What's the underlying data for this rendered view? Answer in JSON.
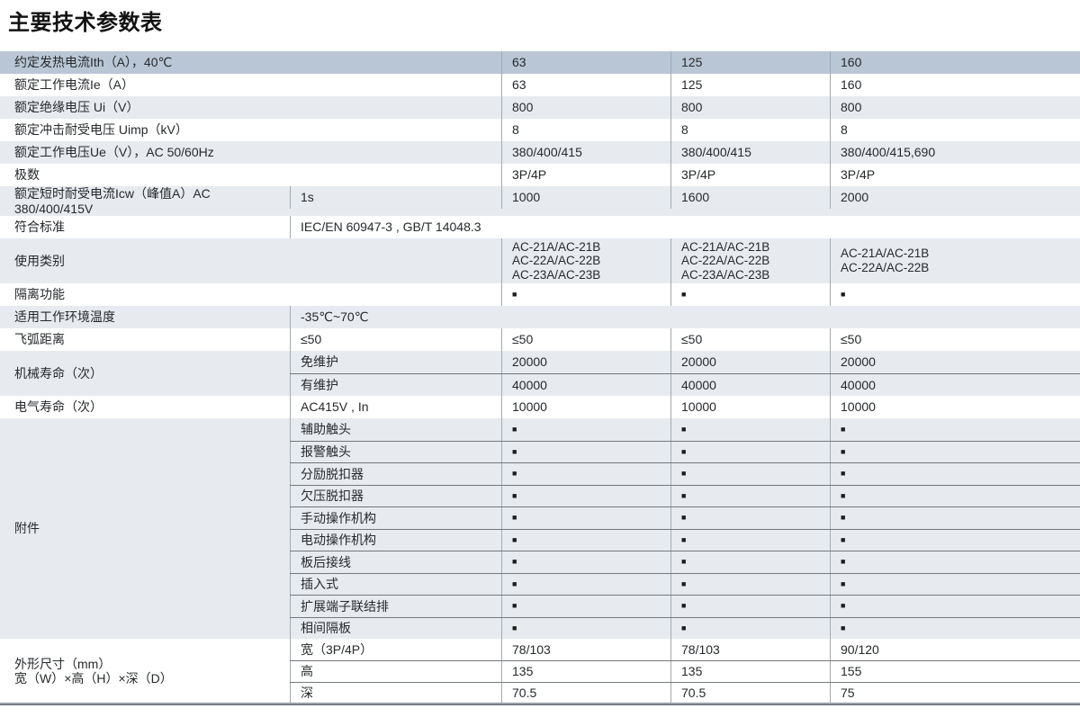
{
  "page_title": "主要技术参数表",
  "colors": {
    "header_row_bg": "#b9c6d5",
    "row_stripe_bg": "#e7ebef",
    "row_white_bg": "#ffffff",
    "divider_line": "#a2a9b1",
    "marker": "#1c1c1c"
  },
  "table": {
    "frame_sizes": [
      "63",
      "125",
      "160"
    ],
    "marker_glyph": "■",
    "sections": [
      {
        "id": "ith",
        "label": "约定发热电流Ith（A），40℃",
        "wide": true,
        "bg": "header",
        "rows": [
          {
            "values": [
              "63",
              "125",
              "160"
            ]
          }
        ]
      },
      {
        "id": "ie",
        "label": "额定工作电流Ie（A）",
        "wide": true,
        "bg": "white",
        "rows": [
          {
            "values": [
              "63",
              "125",
              "160"
            ]
          }
        ]
      },
      {
        "id": "ui",
        "label": "额定绝缘电压 Ui（V）",
        "wide": true,
        "bg": "stripe",
        "rows": [
          {
            "values": [
              "800",
              "800",
              "800"
            ]
          }
        ]
      },
      {
        "id": "uimp",
        "label": "额定冲击耐受电压 Uimp（kV）",
        "wide": true,
        "bg": "white",
        "rows": [
          {
            "values": [
              "8",
              "8",
              "8"
            ]
          }
        ]
      },
      {
        "id": "ue",
        "label": "额定工作电压Ue（V），AC 50/60Hz",
        "wide": true,
        "bg": "stripe",
        "rows": [
          {
            "values": [
              "380/400/415",
              "380/400/415",
              "380/400/415,690"
            ]
          }
        ]
      },
      {
        "id": "poles",
        "label": "极数",
        "wide": true,
        "bg": "white",
        "rows": [
          {
            "values": [
              "3P/4P",
              "3P/4P",
              "3P/4P"
            ]
          }
        ]
      },
      {
        "id": "icw",
        "label": "额定短时耐受电流Icw（峰值A）AC 380/400/415V",
        "wide": false,
        "bg": "stripe",
        "rows": [
          {
            "sub": "1s",
            "values": [
              "1000",
              "1600",
              "2000"
            ]
          }
        ]
      },
      {
        "id": "standards",
        "label": "符合标准",
        "wide": false,
        "bg": "white",
        "rows": [
          {
            "span": "IEC/EN 60947-3 , GB/T 14048.3"
          }
        ]
      },
      {
        "id": "utilization",
        "label": "使用类别",
        "wide": true,
        "bg": "stripe",
        "rows": [
          {
            "values": [
              [
                "AC-21A/AC-21B",
                "AC-22A/AC-22B",
                "AC-23A/AC-23B"
              ],
              [
                "AC-21A/AC-21B",
                "AC-22A/AC-22B",
                "AC-23A/AC-23B"
              ],
              [
                "AC-21A/AC-21B",
                "AC-22A/AC-22B"
              ]
            ]
          }
        ]
      },
      {
        "id": "isolation",
        "label": "隔离功能",
        "wide": true,
        "bg": "white",
        "rows": [
          {
            "values": [
              "■",
              "■",
              "■"
            ]
          }
        ]
      },
      {
        "id": "ambient",
        "label": "适用工作环境温度",
        "wide": false,
        "bg": "stripe",
        "rows": [
          {
            "span": "-35℃~70℃"
          }
        ]
      },
      {
        "id": "arc-distance",
        "label": "飞弧距离",
        "wide": false,
        "bg": "white",
        "rows": [
          {
            "sub": "≤50",
            "values": [
              "≤50",
              "≤50",
              "≤50"
            ]
          }
        ]
      },
      {
        "id": "mech-life",
        "label": "机械寿命（次）",
        "wide": false,
        "bg": "stripe",
        "rows": [
          {
            "sub": "免维护",
            "values": [
              "20000",
              "20000",
              "20000"
            ]
          },
          {
            "sub": "有维护",
            "values": [
              "40000",
              "40000",
              "40000"
            ]
          }
        ]
      },
      {
        "id": "elec-life",
        "label": "电气寿命（次）",
        "wide": false,
        "bg": "white",
        "rows": [
          {
            "sub": "AC415V , In",
            "values": [
              "10000",
              "10000",
              "10000"
            ]
          }
        ]
      },
      {
        "id": "accessories",
        "label": "附件",
        "wide": false,
        "bg": "stripe",
        "rows": [
          {
            "sub": "辅助触头",
            "values": [
              "■",
              "■",
              "■"
            ]
          },
          {
            "sub": "报警触头",
            "values": [
              "■",
              "■",
              "■"
            ]
          },
          {
            "sub": "分励脱扣器",
            "values": [
              "■",
              "■",
              "■"
            ]
          },
          {
            "sub": "欠压脱扣器",
            "values": [
              "■",
              "■",
              "■"
            ]
          },
          {
            "sub": "手动操作机构",
            "values": [
              "■",
              "■",
              "■"
            ]
          },
          {
            "sub": "电动操作机构",
            "values": [
              "■",
              "■",
              "■"
            ]
          },
          {
            "sub": "板后接线",
            "values": [
              "■",
              "■",
              "■"
            ]
          },
          {
            "sub": "插入式",
            "values": [
              "■",
              "■",
              "■"
            ]
          },
          {
            "sub": "扩展端子联结排",
            "values": [
              "■",
              "■",
              "■"
            ]
          },
          {
            "sub": "相间隔板",
            "values": [
              "■",
              "■",
              "■"
            ]
          }
        ]
      },
      {
        "id": "dimensions",
        "label": "外形尺寸（mm）",
        "label2": "宽（W）×高（H）×深（D）",
        "wide": false,
        "bg": "white",
        "rows": [
          {
            "sub": "宽（3P/4P）",
            "values": [
              "78/103",
              "78/103",
              "90/120"
            ]
          },
          {
            "sub": "高",
            "values": [
              "135",
              "135",
              "155"
            ]
          },
          {
            "sub": "深",
            "values": [
              "70.5",
              "70.5",
              "75"
            ]
          }
        ]
      }
    ]
  }
}
